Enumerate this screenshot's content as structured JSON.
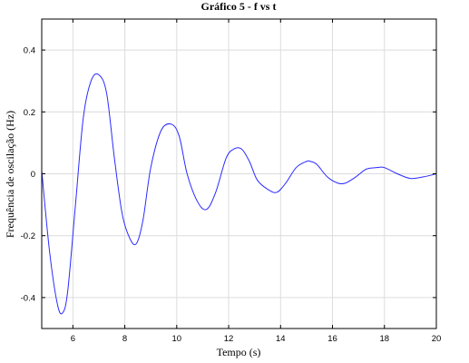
{
  "chart_data": {
    "type": "line",
    "title": "Gráfico 5 - f vs t",
    "xlabel": "Tempo (s)",
    "ylabel": "Frequência de oscilação (Hz)",
    "xlim": [
      4.8,
      20
    ],
    "ylim": [
      -0.5,
      0.5
    ],
    "xticks": [
      6,
      8,
      10,
      12,
      14,
      16,
      18,
      20
    ],
    "yticks": [
      -0.4,
      -0.2,
      0,
      0.2,
      0.4
    ],
    "xtick_labels": [
      "6",
      "8",
      "10",
      "12",
      "14",
      "16",
      "18",
      "20"
    ],
    "ytick_labels": [
      "-0.4",
      "-0.2",
      "0",
      "0.2",
      "0.4"
    ],
    "grid": true,
    "series_color": "#2b2bff",
    "series": [
      {
        "x": [
          4.8,
          5.1,
          5.4,
          5.6,
          5.8,
          6.1,
          6.4,
          6.7,
          7.0,
          7.3,
          7.6,
          7.9,
          8.2,
          8.45,
          8.7,
          9.0,
          9.4,
          9.8,
          10.1,
          10.4,
          10.8,
          11.15,
          11.5,
          11.9,
          12.2,
          12.5,
          12.8,
          13.1,
          13.5,
          13.85,
          14.2,
          14.6,
          15.0,
          15.15,
          15.4,
          15.8,
          16.2,
          16.5,
          16.9,
          17.3,
          17.7,
          18.0,
          18.5,
          19.0,
          19.5,
          20.0
        ],
        "y": [
          0.01,
          -0.25,
          -0.42,
          -0.45,
          -0.38,
          -0.1,
          0.18,
          0.3,
          0.32,
          0.26,
          0.05,
          -0.13,
          -0.21,
          -0.225,
          -0.15,
          0.02,
          0.14,
          0.16,
          0.12,
          0.0,
          -0.09,
          -0.115,
          -0.06,
          0.05,
          0.08,
          0.08,
          0.04,
          -0.02,
          -0.05,
          -0.06,
          -0.03,
          0.02,
          0.04,
          0.04,
          0.03,
          -0.01,
          -0.03,
          -0.03,
          -0.01,
          0.015,
          0.02,
          0.02,
          0.0,
          -0.015,
          -0.01,
          0.0
        ]
      }
    ]
  }
}
